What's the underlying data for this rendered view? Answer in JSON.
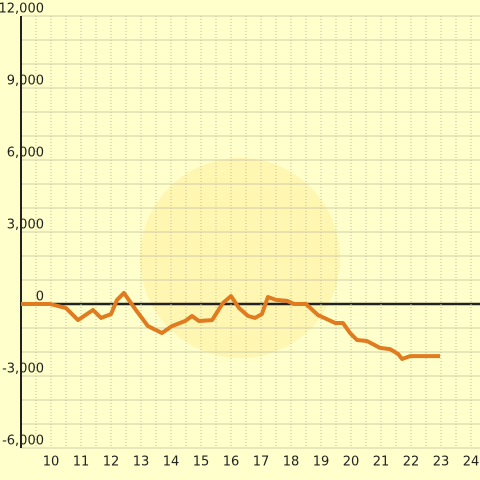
{
  "chart_data": {
    "type": "line",
    "x": [
      9.0,
      9.97,
      10.5,
      10.9,
      11.4,
      11.67,
      12.0,
      12.2,
      12.43,
      12.83,
      13.23,
      13.7,
      14.03,
      14.47,
      14.7,
      14.93,
      15.37,
      15.73,
      16.0,
      16.27,
      16.57,
      16.8,
      17.03,
      17.23,
      17.5,
      17.87,
      18.1,
      18.5,
      18.9,
      19.47,
      19.73,
      19.97,
      20.2,
      20.53,
      20.97,
      21.3,
      21.57,
      21.7,
      21.97,
      22.97
    ],
    "series": [
      {
        "color": "#e07b20",
        "values": [
          0,
          0,
          -170,
          -670,
          -250,
          -580,
          -420,
          170,
          460,
          -250,
          -920,
          -1210,
          -920,
          -710,
          -500,
          -710,
          -670,
          40,
          330,
          -170,
          -500,
          -580,
          -420,
          290,
          170,
          130,
          0,
          0,
          -460,
          -790,
          -790,
          -1210,
          -1500,
          -1540,
          -1830,
          -1880,
          -2080,
          -2290,
          -2170,
          -2170
        ]
      }
    ],
    "xlim": [
      9,
      24.3
    ],
    "xticks": [
      10,
      11,
      12,
      13,
      14,
      15,
      16,
      17,
      18,
      19,
      20,
      21,
      22,
      23,
      24
    ],
    "ylim": [
      -6000,
      12000
    ],
    "yticks": [
      {
        "value": -6000,
        "label": "-6,000"
      },
      {
        "value": -3000,
        "label": "-3,000"
      },
      0,
      {
        "value": 3000,
        "label": "3,000"
      },
      {
        "value": 6000,
        "label": "6,000"
      },
      {
        "value": 9000,
        "label": "9,000"
      },
      {
        "value": 12000,
        "label": "12,000"
      }
    ],
    "grid": true
  }
}
